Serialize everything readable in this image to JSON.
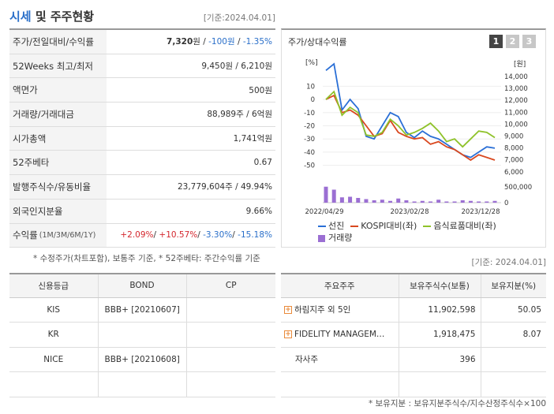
{
  "header": {
    "title_hl": "시세",
    "title_rest": " 및 주주현황",
    "base_date": "[기준:2024.04.01]"
  },
  "summary": [
    {
      "label": "주가/전일대비/수익률",
      "label_small": "",
      "parts": [
        {
          "t": "7,320",
          "c": "bold"
        },
        {
          "t": "원 / ",
          "c": ""
        },
        {
          "t": "-100원",
          "c": "blue"
        },
        {
          "t": " / ",
          "c": ""
        },
        {
          "t": "-1.35%",
          "c": "blue"
        }
      ]
    },
    {
      "label": "52Weeks 최고/최저",
      "label_small": "",
      "parts": [
        {
          "t": "9,450원 / 6,210원",
          "c": ""
        }
      ]
    },
    {
      "label": "액면가",
      "label_small": "",
      "parts": [
        {
          "t": "500원",
          "c": ""
        }
      ]
    },
    {
      "label": "거래량/거래대금",
      "label_small": "",
      "parts": [
        {
          "t": "88,989주 / 6억원",
          "c": ""
        }
      ]
    },
    {
      "label": "시가총액",
      "label_small": "",
      "parts": [
        {
          "t": "1,741억원",
          "c": ""
        }
      ]
    },
    {
      "label": "52주베타",
      "label_small": "",
      "parts": [
        {
          "t": "0.67",
          "c": ""
        }
      ]
    },
    {
      "label": "발행주식수/유동비율",
      "label_small": "",
      "parts": [
        {
          "t": "23,779,604주 / 49.94%",
          "c": ""
        }
      ]
    },
    {
      "label": "외국인지분율",
      "label_small": "",
      "parts": [
        {
          "t": "9.66%",
          "c": ""
        }
      ]
    },
    {
      "label": "수익률",
      "label_small": "(1M/3M/6M/1Y)",
      "parts": [
        {
          "t": "+2.09%",
          "c": "red"
        },
        {
          "t": "/ ",
          "c": ""
        },
        {
          "t": "+10.57%",
          "c": "red"
        },
        {
          "t": "/ ",
          "c": ""
        },
        {
          "t": "-3.30%",
          "c": "blue"
        },
        {
          "t": "/ ",
          "c": ""
        },
        {
          "t": "-15.18%",
          "c": "blue"
        }
      ]
    }
  ],
  "note_left": "* 수정주가(차트포함), 보통주 기준, * 52주베타: 주간수익률 기준",
  "chart_panel": {
    "title": "주가/상대수익률",
    "pages": [
      "1",
      "2",
      "3"
    ],
    "active_page": 0,
    "unit_left": "[%]",
    "unit_right": "[원]"
  },
  "chart_data": {
    "type": "line",
    "x_tick_labels": [
      "2022/04/29",
      "2023/02/28",
      "2023/12/28"
    ],
    "left_axis": {
      "ticks": [
        10,
        0,
        -10,
        -20,
        -30,
        -40,
        -50
      ],
      "range": [
        -55,
        18
      ]
    },
    "right_axis": {
      "ticks": [
        "14,000",
        "13,000",
        "12,000",
        "11,000",
        "10,000",
        "9,000",
        "8,000",
        "7,000",
        "6,000"
      ],
      "range": [
        5500,
        14500
      ]
    },
    "volume_axis": {
      "ticks": [
        "500,000",
        "0"
      ]
    },
    "series": [
      {
        "name": "선진",
        "color": "#2a6fd6",
        "values": [
          22,
          27,
          -8,
          0,
          -7,
          -28,
          -30,
          -20,
          -10,
          -13,
          -25,
          -29,
          -24,
          -28,
          -30,
          -34,
          -38,
          -42,
          -44,
          -40,
          -36,
          -37
        ]
      },
      {
        "name": "KOSPI대비(좌)",
        "color": "#d9481f",
        "values": [
          0,
          3,
          -10,
          -8,
          -12,
          -20,
          -28,
          -26,
          -16,
          -25,
          -28,
          -30,
          -29,
          -34,
          -32,
          -36,
          -38,
          -42,
          -46,
          -42,
          -44,
          -46
        ]
      },
      {
        "name": "음식료품대비(좌)",
        "color": "#8fc22a",
        "values": [
          0,
          6,
          -12,
          -6,
          -10,
          -27,
          -28,
          -25,
          -15,
          -20,
          -27,
          -25,
          -22,
          -18,
          -24,
          -32,
          -30,
          -36,
          -30,
          -24,
          -25,
          -29
        ]
      },
      {
        "name": "거래량",
        "color": "#9b6fd3",
        "values": [
          2.7,
          2.2,
          0.9,
          1.0,
          0.8,
          0.6,
          0.4,
          0.5,
          0.3,
          0.7,
          0.4,
          0.2,
          0.3,
          0.2,
          0.5,
          0.2,
          0.2,
          0.4,
          0.3,
          0.2,
          0.2,
          0.3
        ]
      }
    ]
  },
  "legend": [
    {
      "label": "선진",
      "color": "#2a6fd6",
      "kind": "line"
    },
    {
      "label": "KOSPI대비(좌)",
      "color": "#d9481f",
      "kind": "line"
    },
    {
      "label": "음식료품대비(좌)",
      "color": "#8fc22a",
      "kind": "line"
    },
    {
      "label": "거래량",
      "color": "#9b6fd3",
      "kind": "box"
    }
  ],
  "base_date_right": "[기준: 2024.04.01]",
  "credit_table": {
    "headers": [
      "신용등급",
      "BOND",
      "CP"
    ],
    "rows": [
      [
        "KIS",
        "BBB+ [20210607]",
        ""
      ],
      [
        "KR",
        "",
        ""
      ],
      [
        "NICE",
        "BBB+ [20210608]",
        ""
      ],
      [
        "",
        "",
        ""
      ]
    ]
  },
  "holder_table": {
    "headers": [
      "주요주주",
      "보유주식수(보통)",
      "보유지분(%)"
    ],
    "rows": [
      {
        "name": "하림지주 외 5인",
        "expand": true,
        "shares": "11,902,598",
        "pct": "50.05"
      },
      {
        "name": "FIDELITY MANAGEM…",
        "expand": true,
        "shares": "1,918,475",
        "pct": "8.07"
      },
      {
        "name": "자사주",
        "expand": false,
        "shares": "396",
        "pct": ""
      },
      {
        "name": "",
        "expand": false,
        "shares": "",
        "pct": ""
      }
    ]
  },
  "note_right": "* 보유지분 : 보유지분주식수/지수산정주식수×100"
}
